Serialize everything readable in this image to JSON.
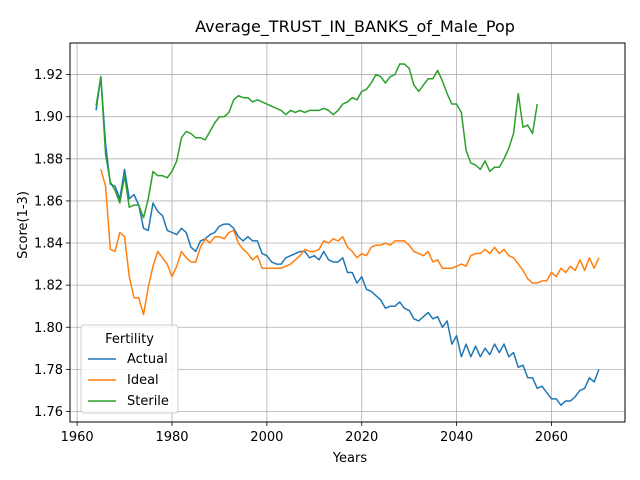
{
  "chart_data": {
    "type": "line",
    "title": "Average_TRUST_IN_BANKS_of_Male_Pop",
    "xlabel": "Years",
    "ylabel": "Score(1-3)",
    "xlim": [
      1958.5,
      2075.5
    ],
    "ylim": [
      1.755,
      1.935
    ],
    "xticks": [
      1960,
      1980,
      2000,
      2020,
      2040,
      2060
    ],
    "yticks": [
      1.76,
      1.78,
      1.8,
      1.82,
      1.84,
      1.86,
      1.88,
      1.9,
      1.92
    ],
    "grid": true,
    "legend": {
      "title": "Fertility",
      "placement": "lower-left",
      "entries": [
        "Actual",
        "Ideal",
        "Sterile"
      ]
    },
    "series": [
      {
        "name": "Actual",
        "color": "#1f77b4",
        "points": [
          [
            1964,
            1.903
          ],
          [
            1965,
            1.919
          ],
          [
            1966,
            1.887
          ],
          [
            1967,
            1.868
          ],
          [
            1968,
            1.867
          ],
          [
            1969,
            1.861
          ],
          [
            1970,
            1.875
          ],
          [
            1971,
            1.861
          ],
          [
            1972,
            1.863
          ],
          [
            1973,
            1.858
          ],
          [
            1974,
            1.847
          ],
          [
            1975,
            1.846
          ],
          [
            1976,
            1.859
          ],
          [
            1977,
            1.855
          ],
          [
            1978,
            1.853
          ],
          [
            1979,
            1.846
          ],
          [
            1980,
            1.845
          ],
          [
            1981,
            1.844
          ],
          [
            1982,
            1.847
          ],
          [
            1983,
            1.845
          ],
          [
            1984,
            1.838
          ],
          [
            1985,
            1.836
          ],
          [
            1986,
            1.841
          ],
          [
            1987,
            1.842
          ],
          [
            1988,
            1.844
          ],
          [
            1989,
            1.845
          ],
          [
            1990,
            1.848
          ],
          [
            1991,
            1.849
          ],
          [
            1992,
            1.849
          ],
          [
            1993,
            1.847
          ],
          [
            1994,
            1.843
          ],
          [
            1995,
            1.841
          ],
          [
            1996,
            1.843
          ],
          [
            1997,
            1.841
          ],
          [
            1998,
            1.841
          ],
          [
            1999,
            1.835
          ],
          [
            2000,
            1.834
          ],
          [
            2001,
            1.831
          ],
          [
            2002,
            1.83
          ],
          [
            2003,
            1.83
          ],
          [
            2004,
            1.833
          ],
          [
            2005,
            1.834
          ],
          [
            2006,
            1.835
          ],
          [
            2007,
            1.836
          ],
          [
            2008,
            1.836
          ],
          [
            2009,
            1.833
          ],
          [
            2010,
            1.834
          ],
          [
            2011,
            1.832
          ],
          [
            2012,
            1.836
          ],
          [
            2013,
            1.832
          ],
          [
            2014,
            1.831
          ],
          [
            2015,
            1.831
          ],
          [
            2016,
            1.833
          ],
          [
            2017,
            1.826
          ],
          [
            2018,
            1.826
          ],
          [
            2019,
            1.821
          ],
          [
            2020,
            1.824
          ],
          [
            2021,
            1.818
          ],
          [
            2022,
            1.817
          ],
          [
            2023,
            1.815
          ],
          [
            2024,
            1.813
          ],
          [
            2025,
            1.809
          ],
          [
            2026,
            1.81
          ],
          [
            2027,
            1.81
          ],
          [
            2028,
            1.812
          ],
          [
            2029,
            1.809
          ],
          [
            2030,
            1.808
          ],
          [
            2031,
            1.804
          ],
          [
            2032,
            1.803
          ],
          [
            2033,
            1.805
          ],
          [
            2034,
            1.807
          ],
          [
            2035,
            1.804
          ],
          [
            2036,
            1.805
          ],
          [
            2037,
            1.8
          ],
          [
            2038,
            1.803
          ],
          [
            2039,
            1.792
          ],
          [
            2040,
            1.796
          ],
          [
            2041,
            1.786
          ],
          [
            2042,
            1.792
          ],
          [
            2043,
            1.786
          ],
          [
            2044,
            1.791
          ],
          [
            2045,
            1.786
          ],
          [
            2046,
            1.79
          ],
          [
            2047,
            1.787
          ],
          [
            2048,
            1.792
          ],
          [
            2049,
            1.788
          ],
          [
            2050,
            1.792
          ],
          [
            2051,
            1.786
          ],
          [
            2052,
            1.788
          ],
          [
            2053,
            1.781
          ],
          [
            2054,
            1.782
          ],
          [
            2055,
            1.776
          ],
          [
            2056,
            1.776
          ],
          [
            2057,
            1.771
          ],
          [
            2058,
            1.772
          ],
          [
            2059,
            1.769
          ],
          [
            2060,
            1.766
          ],
          [
            2061,
            1.766
          ],
          [
            2062,
            1.763
          ],
          [
            2063,
            1.765
          ],
          [
            2064,
            1.765
          ],
          [
            2065,
            1.767
          ],
          [
            2066,
            1.77
          ],
          [
            2067,
            1.771
          ],
          [
            2068,
            1.776
          ],
          [
            2069,
            1.774
          ],
          [
            2070,
            1.78
          ]
        ]
      },
      {
        "name": "Ideal",
        "color": "#ff7f0e",
        "points": [
          [
            1965,
            1.875
          ],
          [
            1966,
            1.867
          ],
          [
            1967,
            1.837
          ],
          [
            1968,
            1.836
          ],
          [
            1969,
            1.845
          ],
          [
            1970,
            1.843
          ],
          [
            1971,
            1.824
          ],
          [
            1972,
            1.814
          ],
          [
            1973,
            1.814
          ],
          [
            1974,
            1.806
          ],
          [
            1975,
            1.819
          ],
          [
            1976,
            1.829
          ],
          [
            1977,
            1.836
          ],
          [
            1978,
            1.833
          ],
          [
            1979,
            1.83
          ],
          [
            1980,
            1.824
          ],
          [
            1981,
            1.829
          ],
          [
            1982,
            1.836
          ],
          [
            1983,
            1.833
          ],
          [
            1984,
            1.831
          ],
          [
            1985,
            1.831
          ],
          [
            1986,
            1.838
          ],
          [
            1987,
            1.842
          ],
          [
            1988,
            1.84
          ],
          [
            1989,
            1.843
          ],
          [
            1990,
            1.843
          ],
          [
            1991,
            1.842
          ],
          [
            1992,
            1.845
          ],
          [
            1993,
            1.846
          ],
          [
            1994,
            1.84
          ],
          [
            1995,
            1.837
          ],
          [
            1996,
            1.835
          ],
          [
            1997,
            1.832
          ],
          [
            1998,
            1.834
          ],
          [
            1999,
            1.828
          ],
          [
            2000,
            1.828
          ],
          [
            2001,
            1.828
          ],
          [
            2002,
            1.828
          ],
          [
            2003,
            1.828
          ],
          [
            2004,
            1.829
          ],
          [
            2005,
            1.83
          ],
          [
            2006,
            1.832
          ],
          [
            2007,
            1.834
          ],
          [
            2008,
            1.837
          ],
          [
            2009,
            1.836
          ],
          [
            2010,
            1.836
          ],
          [
            2011,
            1.837
          ],
          [
            2012,
            1.841
          ],
          [
            2013,
            1.84
          ],
          [
            2014,
            1.842
          ],
          [
            2015,
            1.841
          ],
          [
            2016,
            1.843
          ],
          [
            2017,
            1.838
          ],
          [
            2018,
            1.836
          ],
          [
            2019,
            1.833
          ],
          [
            2020,
            1.835
          ],
          [
            2021,
            1.834
          ],
          [
            2022,
            1.838
          ],
          [
            2023,
            1.839
          ],
          [
            2024,
            1.839
          ],
          [
            2025,
            1.84
          ],
          [
            2026,
            1.839
          ],
          [
            2027,
            1.841
          ],
          [
            2028,
            1.841
          ],
          [
            2029,
            1.841
          ],
          [
            2030,
            1.839
          ],
          [
            2031,
            1.836
          ],
          [
            2032,
            1.835
          ],
          [
            2033,
            1.834
          ],
          [
            2034,
            1.836
          ],
          [
            2035,
            1.831
          ],
          [
            2036,
            1.832
          ],
          [
            2037,
            1.828
          ],
          [
            2038,
            1.828
          ],
          [
            2039,
            1.828
          ],
          [
            2040,
            1.829
          ],
          [
            2041,
            1.83
          ],
          [
            2042,
            1.829
          ],
          [
            2043,
            1.834
          ],
          [
            2044,
            1.835
          ],
          [
            2045,
            1.835
          ],
          [
            2046,
            1.837
          ],
          [
            2047,
            1.835
          ],
          [
            2048,
            1.838
          ],
          [
            2049,
            1.835
          ],
          [
            2050,
            1.837
          ],
          [
            2051,
            1.834
          ],
          [
            2052,
            1.833
          ],
          [
            2053,
            1.83
          ],
          [
            2054,
            1.827
          ],
          [
            2055,
            1.823
          ],
          [
            2056,
            1.821
          ],
          [
            2057,
            1.821
          ],
          [
            2058,
            1.822
          ],
          [
            2059,
            1.822
          ],
          [
            2060,
            1.826
          ],
          [
            2061,
            1.824
          ],
          [
            2062,
            1.828
          ],
          [
            2063,
            1.826
          ],
          [
            2064,
            1.829
          ],
          [
            2065,
            1.827
          ],
          [
            2066,
            1.832
          ],
          [
            2067,
            1.827
          ],
          [
            2068,
            1.833
          ],
          [
            2069,
            1.828
          ],
          [
            2070,
            1.833
          ]
        ]
      },
      {
        "name": "Sterile",
        "color": "#2ca02c",
        "points": [
          [
            1964,
            1.905
          ],
          [
            1965,
            1.919
          ],
          [
            1966,
            1.882
          ],
          [
            1967,
            1.869
          ],
          [
            1968,
            1.865
          ],
          [
            1969,
            1.859
          ],
          [
            1970,
            1.872
          ],
          [
            1971,
            1.857
          ],
          [
            1972,
            1.858
          ],
          [
            1973,
            1.858
          ],
          [
            1974,
            1.852
          ],
          [
            1975,
            1.861
          ],
          [
            1976,
            1.874
          ],
          [
            1977,
            1.872
          ],
          [
            1978,
            1.872
          ],
          [
            1979,
            1.871
          ],
          [
            1980,
            1.874
          ],
          [
            1981,
            1.879
          ],
          [
            1982,
            1.89
          ],
          [
            1983,
            1.893
          ],
          [
            1984,
            1.892
          ],
          [
            1985,
            1.89
          ],
          [
            1986,
            1.89
          ],
          [
            1987,
            1.889
          ],
          [
            1988,
            1.893
          ],
          [
            1989,
            1.897
          ],
          [
            1990,
            1.9
          ],
          [
            1991,
            1.9
          ],
          [
            1992,
            1.902
          ],
          [
            1993,
            1.908
          ],
          [
            1994,
            1.91
          ],
          [
            1995,
            1.909
          ],
          [
            1996,
            1.909
          ],
          [
            1997,
            1.907
          ],
          [
            1998,
            1.908
          ],
          [
            1999,
            1.907
          ],
          [
            2000,
            1.906
          ],
          [
            2001,
            1.905
          ],
          [
            2002,
            1.904
          ],
          [
            2003,
            1.903
          ],
          [
            2004,
            1.901
          ],
          [
            2005,
            1.903
          ],
          [
            2006,
            1.902
          ],
          [
            2007,
            1.903
          ],
          [
            2008,
            1.902
          ],
          [
            2009,
            1.903
          ],
          [
            2010,
            1.903
          ],
          [
            2011,
            1.903
          ],
          [
            2012,
            1.904
          ],
          [
            2013,
            1.903
          ],
          [
            2014,
            1.901
          ],
          [
            2015,
            1.903
          ],
          [
            2016,
            1.906
          ],
          [
            2017,
            1.907
          ],
          [
            2018,
            1.909
          ],
          [
            2019,
            1.908
          ],
          [
            2020,
            1.912
          ],
          [
            2021,
            1.913
          ],
          [
            2022,
            1.916
          ],
          [
            2023,
            1.92
          ],
          [
            2024,
            1.919
          ],
          [
            2025,
            1.916
          ],
          [
            2026,
            1.919
          ],
          [
            2027,
            1.92
          ],
          [
            2028,
            1.925
          ],
          [
            2029,
            1.925
          ],
          [
            2030,
            1.923
          ],
          [
            2031,
            1.915
          ],
          [
            2032,
            1.912
          ],
          [
            2033,
            1.915
          ],
          [
            2034,
            1.918
          ],
          [
            2035,
            1.918
          ],
          [
            2036,
            1.922
          ],
          [
            2037,
            1.917
          ],
          [
            2038,
            1.911
          ],
          [
            2039,
            1.906
          ],
          [
            2040,
            1.906
          ],
          [
            2041,
            1.902
          ],
          [
            2042,
            1.884
          ],
          [
            2043,
            1.878
          ],
          [
            2044,
            1.877
          ],
          [
            2045,
            1.875
          ],
          [
            2046,
            1.879
          ],
          [
            2047,
            1.874
          ],
          [
            2048,
            1.876
          ],
          [
            2049,
            1.876
          ],
          [
            2050,
            1.88
          ],
          [
            2051,
            1.885
          ],
          [
            2052,
            1.892
          ],
          [
            2053,
            1.911
          ],
          [
            2054,
            1.895
          ],
          [
            2055,
            1.896
          ],
          [
            2056,
            1.892
          ],
          [
            2057,
            1.906
          ]
        ]
      }
    ]
  }
}
